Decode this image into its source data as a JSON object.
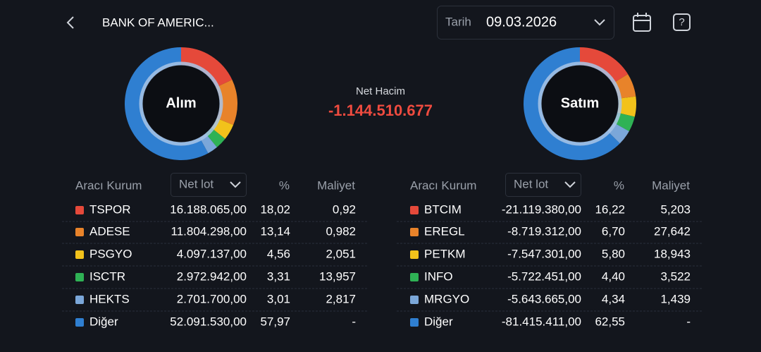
{
  "header": {
    "title": "BANK OF AMERIC...",
    "date_label": "Tarih",
    "date": "09.03.2026"
  },
  "net": {
    "label": "Net Hacim",
    "value": "-1.144.510.677"
  },
  "panels": [
    {
      "donut_label": "Alım",
      "columns": {
        "broker": "Aracı Kurum",
        "lot": "Net lot",
        "percent": "%",
        "cost": "Maliyet"
      },
      "rows": [
        {
          "name": "TSPOR",
          "color": "#e5493a",
          "lot": "16.188.065,00",
          "percent": 18.02,
          "percent_label": "18,02",
          "cost": "0,92"
        },
        {
          "name": "ADESE",
          "color": "#e8832a",
          "lot": "11.804.298,00",
          "percent": 13.14,
          "percent_label": "13,14",
          "cost": "0,982"
        },
        {
          "name": "PSGYO",
          "color": "#f2c21b",
          "lot": "4.097.137,00",
          "percent": 4.56,
          "percent_label": "4,56",
          "cost": "2,051"
        },
        {
          "name": "ISCTR",
          "color": "#2fb255",
          "lot": "2.972.942,00",
          "percent": 3.31,
          "percent_label": "3,31",
          "cost": "13,957"
        },
        {
          "name": "HEKTS",
          "color": "#7ba7d9",
          "lot": "2.701.700,00",
          "percent": 3.01,
          "percent_label": "3,01",
          "cost": "2,817"
        },
        {
          "name": "Diğer",
          "color": "#2f7fd1",
          "lot": "52.091.530,00",
          "percent": 57.97,
          "percent_label": "57,97",
          "cost": "-"
        }
      ]
    },
    {
      "donut_label": "Satım",
      "columns": {
        "broker": "Aracı Kurum",
        "lot": "Net lot",
        "percent": "%",
        "cost": "Maliyet"
      },
      "rows": [
        {
          "name": "BTCIM",
          "color": "#e5493a",
          "lot": "-21.119.380,00",
          "percent": 16.22,
          "percent_label": "16,22",
          "cost": "5,203"
        },
        {
          "name": "EREGL",
          "color": "#e8832a",
          "lot": "-8.719.312,00",
          "percent": 6.7,
          "percent_label": "6,70",
          "cost": "27,642"
        },
        {
          "name": "PETKM",
          "color": "#f2c21b",
          "lot": "-7.547.301,00",
          "percent": 5.8,
          "percent_label": "5,80",
          "cost": "18,943"
        },
        {
          "name": "INFO",
          "color": "#2fb255",
          "lot": "-5.722.451,00",
          "percent": 4.4,
          "percent_label": "4,40",
          "cost": "3,522"
        },
        {
          "name": "MRGYO",
          "color": "#7ba7d9",
          "lot": "-5.643.665,00",
          "percent": 4.34,
          "percent_label": "4,34",
          "cost": "1,439"
        },
        {
          "name": "Diğer",
          "color": "#2f7fd1",
          "lot": "-81.415.411,00",
          "percent": 62.55,
          "percent_label": "62,55",
          "cost": "-"
        }
      ]
    }
  ]
}
